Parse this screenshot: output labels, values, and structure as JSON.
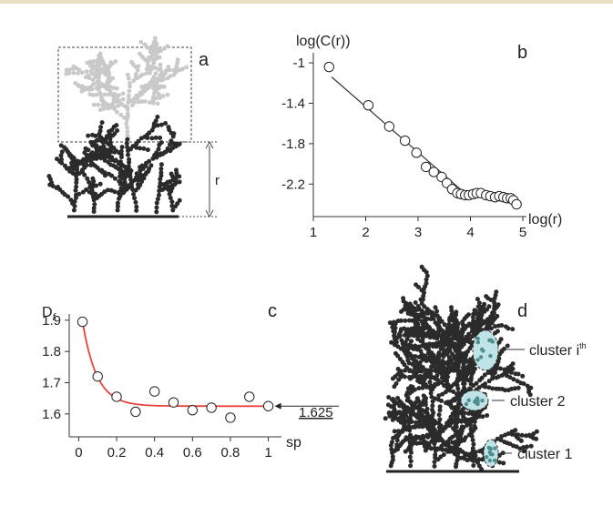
{
  "panel_labels": [
    "a",
    "b",
    "c",
    "d"
  ],
  "panel_a": {
    "distance_label": "r"
  },
  "chart_data": [
    {
      "panel": "b",
      "type": "scatter",
      "ylabel": "log(C(r))",
      "xlabel": "log(r)",
      "xlim": [
        1,
        5
      ],
      "ylim": [
        -2.45,
        -0.9
      ],
      "x_ticks": [
        "1",
        "2",
        "3",
        "4",
        "5"
      ],
      "y_ticks": [
        "-1",
        "-1.4",
        "-1.8",
        "-2.2"
      ],
      "x_tick_values": [
        1,
        2,
        3,
        4,
        5
      ],
      "y_tick_values": [
        -1,
        -1.4,
        -1.8,
        -2.2
      ],
      "points": [
        [
          1.3,
          -1.04
        ],
        [
          2.05,
          -1.42
        ],
        [
          2.45,
          -1.63
        ],
        [
          2.75,
          -1.77
        ],
        [
          2.97,
          -1.89
        ],
        [
          3.15,
          -2.03
        ],
        [
          3.3,
          -2.08
        ],
        [
          3.45,
          -2.13
        ],
        [
          3.55,
          -2.19
        ],
        [
          3.65,
          -2.25
        ],
        [
          3.75,
          -2.29
        ],
        [
          3.82,
          -2.3
        ],
        [
          3.9,
          -2.31
        ],
        [
          3.97,
          -2.31
        ],
        [
          4.05,
          -2.3
        ],
        [
          4.12,
          -2.29
        ],
        [
          4.2,
          -2.29
        ],
        [
          4.3,
          -2.31
        ],
        [
          4.38,
          -2.32
        ],
        [
          4.47,
          -2.33
        ],
        [
          4.55,
          -2.32
        ],
        [
          4.63,
          -2.33
        ],
        [
          4.7,
          -2.34
        ],
        [
          4.77,
          -2.34
        ],
        [
          4.82,
          -2.36
        ],
        [
          4.88,
          -2.4
        ]
      ],
      "fit_line": [
        [
          1.35,
          -1.14
        ],
        [
          3.85,
          -2.27
        ]
      ]
    },
    {
      "panel": "c",
      "type": "scatter",
      "ylabel": "Df",
      "xlabel": "sp",
      "xlim": [
        -0.05,
        1.05
      ],
      "ylim": [
        1.55,
        1.92
      ],
      "x_ticks": [
        "0",
        "0.2",
        "0.4",
        "0.6",
        "0.8",
        "1"
      ],
      "y_ticks": [
        "1.9",
        "1.8",
        "1.7",
        "1.6"
      ],
      "x_tick_values": [
        0,
        0.2,
        0.4,
        0.6,
        0.8,
        1
      ],
      "y_tick_values": [
        1.9,
        1.8,
        1.7,
        1.6
      ],
      "points": [
        [
          0.02,
          1.895
        ],
        [
          0.1,
          1.72
        ],
        [
          0.2,
          1.655
        ],
        [
          0.3,
          1.607
        ],
        [
          0.4,
          1.672
        ],
        [
          0.5,
          1.637
        ],
        [
          0.6,
          1.612
        ],
        [
          0.7,
          1.62
        ],
        [
          0.8,
          1.588
        ],
        [
          0.9,
          1.655
        ],
        [
          1.0,
          1.625
        ]
      ],
      "fit_color": "#e8433d",
      "asymptote_label": "1.625",
      "asymptote_value": 1.625
    }
  ],
  "panel_d": {
    "clusters": [
      {
        "label": "cluster i",
        "superscript": "th"
      },
      {
        "label": "cluster 2",
        "superscript": ""
      },
      {
        "label": "cluster 1",
        "superscript": ""
      }
    ],
    "highlight_color": "#bfe3e6",
    "cluster_color": "#4f8f8f"
  },
  "colors": {
    "dendrite": "#2b2b2b",
    "ghost": "#c9c9c9",
    "axis": "#333333"
  }
}
